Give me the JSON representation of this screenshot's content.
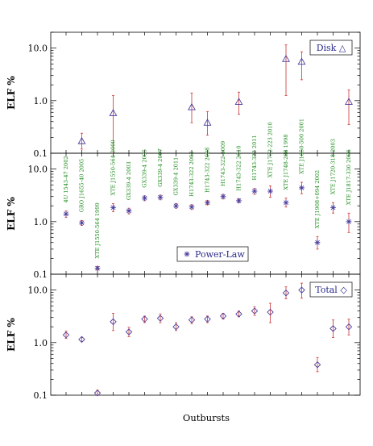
{
  "chart_data": {
    "type": "scatter",
    "xlabel": "Outbursts",
    "ylabel": "ELF %",
    "yscale": "log",
    "ylim": [
      0.1,
      20
    ],
    "yticks": [
      "0.1",
      "1.0",
      "10.0"
    ],
    "sources": [
      "4U 1543-47 2002",
      "GRO J1655-40 2005",
      "XTE J1550-564 1999",
      "XTE J1550-564 2000",
      "GX339-4 2003",
      "GX339-4 2005",
      "GX339-4 2007",
      "GX339-4 2011",
      "H1743-322 2003",
      "H1743-322 2008",
      "H1743-322 2009",
      "H1743-322 2010",
      "H1743-322 2011",
      "XTE J1752-223 2010",
      "XTE J1748-288 1998",
      "XTE J1650-500 2001",
      "XTE J1908+094 2002",
      "XTE J1720-318 2003",
      "XTE J1817-330 2006"
    ],
    "panels": [
      {
        "name": "Disk",
        "marker": "triangle",
        "legend_text": "Disk △",
        "legend_position": "top-right",
        "points": [
          {
            "x": 2,
            "y": 0.17,
            "lo": 0.12,
            "hi": 0.24
          },
          {
            "x": 4,
            "y": 0.58,
            "lo": 0.1,
            "hi": 1.25
          },
          {
            "x": 9,
            "y": 0.75,
            "lo": 0.38,
            "hi": 1.4
          },
          {
            "x": 10,
            "y": 0.38,
            "lo": 0.22,
            "hi": 0.62
          },
          {
            "x": 12,
            "y": 0.95,
            "lo": 0.55,
            "hi": 1.45
          },
          {
            "x": 15,
            "y": 6.2,
            "lo": 1.25,
            "hi": 11.5
          },
          {
            "x": 16,
            "y": 5.5,
            "lo": 2.5,
            "hi": 8.5
          },
          {
            "x": 19,
            "y": 0.95,
            "lo": 0.35,
            "hi": 1.6
          }
        ]
      },
      {
        "name": "Power-Law",
        "marker": "asterisk",
        "legend_text": "Power-Law",
        "legend_position": "bottom-center",
        "points": [
          {
            "x": 1,
            "y": 1.4,
            "lo": 1.2,
            "hi": 1.6
          },
          {
            "x": 2,
            "y": 0.95,
            "lo": 0.85,
            "hi": 1.05
          },
          {
            "x": 3,
            "y": 0.13,
            "lo": 0.12,
            "hi": 0.14
          },
          {
            "x": 4,
            "y": 1.85,
            "lo": 1.55,
            "hi": 2.2
          },
          {
            "x": 5,
            "y": 1.6,
            "lo": 1.4,
            "hi": 1.8
          },
          {
            "x": 6,
            "y": 2.8,
            "lo": 2.5,
            "hi": 3.1
          },
          {
            "x": 7,
            "y": 2.9,
            "lo": 2.6,
            "hi": 3.2
          },
          {
            "x": 8,
            "y": 2.0,
            "lo": 1.8,
            "hi": 2.2
          },
          {
            "x": 9,
            "y": 1.9,
            "lo": 1.7,
            "hi": 2.1
          },
          {
            "x": 10,
            "y": 2.3,
            "lo": 2.1,
            "hi": 2.5
          },
          {
            "x": 11,
            "y": 3.0,
            "lo": 2.7,
            "hi": 3.3
          },
          {
            "x": 12,
            "y": 2.5,
            "lo": 2.3,
            "hi": 2.7
          },
          {
            "x": 13,
            "y": 3.8,
            "lo": 3.3,
            "hi": 4.3
          },
          {
            "x": 14,
            "y": 3.8,
            "lo": 2.9,
            "hi": 4.8
          },
          {
            "x": 15,
            "y": 2.3,
            "lo": 1.9,
            "hi": 2.8
          },
          {
            "x": 16,
            "y": 4.4,
            "lo": 3.4,
            "hi": 5.6
          },
          {
            "x": 17,
            "y": 0.4,
            "lo": 0.3,
            "hi": 0.52
          },
          {
            "x": 18,
            "y": 1.85,
            "lo": 1.45,
            "hi": 2.3
          },
          {
            "x": 19,
            "y": 1.0,
            "lo": 0.62,
            "hi": 1.45
          }
        ]
      },
      {
        "name": "Total",
        "marker": "diamond",
        "legend_text": "Total ◇",
        "legend_position": "top-right",
        "points": [
          {
            "x": 1,
            "y": 1.4,
            "lo": 1.2,
            "hi": 1.65
          },
          {
            "x": 2,
            "y": 1.15,
            "lo": 1.05,
            "hi": 1.25
          },
          {
            "x": 3,
            "y": 0.11,
            "lo": 0.1,
            "hi": 0.125
          },
          {
            "x": 4,
            "y": 2.5,
            "lo": 1.7,
            "hi": 3.6
          },
          {
            "x": 5,
            "y": 1.6,
            "lo": 1.3,
            "hi": 1.95
          },
          {
            "x": 6,
            "y": 2.8,
            "lo": 2.4,
            "hi": 3.2
          },
          {
            "x": 7,
            "y": 2.9,
            "lo": 2.4,
            "hi": 3.5
          },
          {
            "x": 8,
            "y": 2.0,
            "lo": 1.7,
            "hi": 2.4
          },
          {
            "x": 9,
            "y": 2.7,
            "lo": 2.3,
            "hi": 3.1
          },
          {
            "x": 10,
            "y": 2.8,
            "lo": 2.4,
            "hi": 3.2
          },
          {
            "x": 11,
            "y": 3.2,
            "lo": 2.8,
            "hi": 3.6
          },
          {
            "x": 12,
            "y": 3.5,
            "lo": 3.1,
            "hi": 4.0
          },
          {
            "x": 13,
            "y": 4.0,
            "lo": 3.3,
            "hi": 4.8
          },
          {
            "x": 14,
            "y": 3.8,
            "lo": 2.4,
            "hi": 5.6
          },
          {
            "x": 15,
            "y": 8.8,
            "lo": 6.8,
            "hi": 11.5
          },
          {
            "x": 16,
            "y": 10.0,
            "lo": 7.0,
            "hi": 13.5
          },
          {
            "x": 17,
            "y": 0.38,
            "lo": 0.28,
            "hi": 0.52
          },
          {
            "x": 18,
            "y": 1.85,
            "lo": 1.25,
            "hi": 2.7
          },
          {
            "x": 19,
            "y": 2.0,
            "lo": 1.4,
            "hi": 2.8
          }
        ]
      }
    ],
    "colors": {
      "marker": "#4b3fa0",
      "error_bar": "#d24a4a",
      "source_label": "#1a8a1a",
      "legend_text": "#2a2a8a"
    }
  }
}
